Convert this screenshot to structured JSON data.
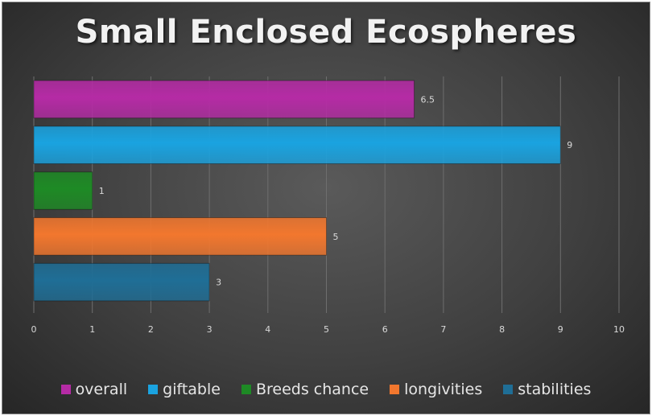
{
  "chart_data": {
    "type": "bar",
    "orientation": "horizontal",
    "title": "Small Enclosed Ecospheres",
    "series": [
      {
        "name": "overall",
        "value": 6.5,
        "color": "#b52ba5"
      },
      {
        "name": "giftable",
        "value": 9,
        "color": "#1aa3e0"
      },
      {
        "name": "Breeds chance",
        "value": 1,
        "color": "#1e8a25"
      },
      {
        "name": "longivities",
        "value": 5,
        "color": "#f2772e"
      },
      {
        "name": "stabilities",
        "value": 3,
        "color": "#1f6e96"
      }
    ],
    "xlim": [
      0,
      10
    ],
    "x_ticks": [
      "0",
      "1",
      "2",
      "3",
      "4",
      "5",
      "6",
      "7",
      "8",
      "9",
      "10"
    ],
    "grid": "vertical",
    "legend_position": "bottom",
    "data_labels": [
      "6.5",
      "9",
      "1",
      "5",
      "3"
    ]
  }
}
